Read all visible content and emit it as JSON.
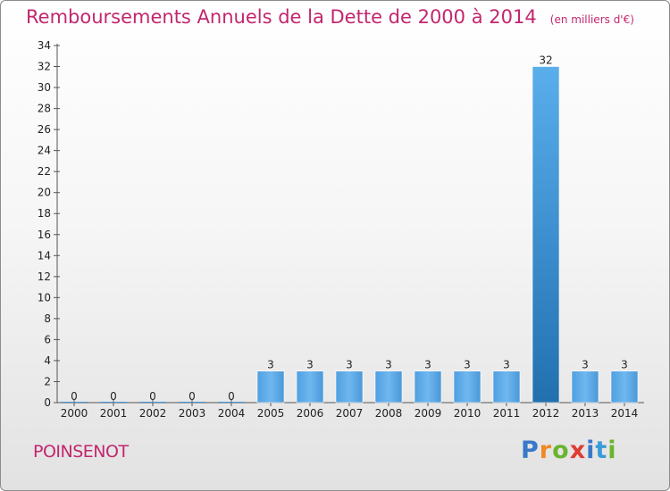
{
  "colors": {
    "title": "#c2266f",
    "bar_light": "#63b0ee",
    "bar_dark": "#2b7cbc",
    "axis": "#555555"
  },
  "header": {
    "title": "Remboursements Annuels de la Dette de 2000 à 2014",
    "subtitle": "(en milliers d'€)"
  },
  "footer": {
    "place": "POINSENOT",
    "logo_letters": [
      "P",
      "r",
      "o",
      "x",
      "i",
      "t",
      "i"
    ],
    "logo_colors": [
      "#3a78c8",
      "#f08a24",
      "#6ab42e",
      "#e03c31",
      "#3a78c8",
      "#3a9bd8",
      "#6ab42e"
    ]
  },
  "chart_data": {
    "type": "bar",
    "title": "Remboursements Annuels de la Dette de 2000 à 2014",
    "subtitle": "(en milliers d'€)",
    "categories": [
      "2000",
      "2001",
      "2002",
      "2003",
      "2004",
      "2005",
      "2006",
      "2007",
      "2008",
      "2009",
      "2010",
      "2011",
      "2012",
      "2013",
      "2014"
    ],
    "values": [
      0,
      0,
      0,
      0,
      0,
      3,
      3,
      3,
      3,
      3,
      3,
      3,
      32,
      3,
      3
    ],
    "ylim": [
      0,
      34
    ],
    "yticks": [
      0,
      2,
      4,
      6,
      8,
      10,
      12,
      14,
      16,
      18,
      20,
      22,
      24,
      26,
      28,
      30,
      32,
      34
    ],
    "highlight_index": 12,
    "grid": false
  }
}
